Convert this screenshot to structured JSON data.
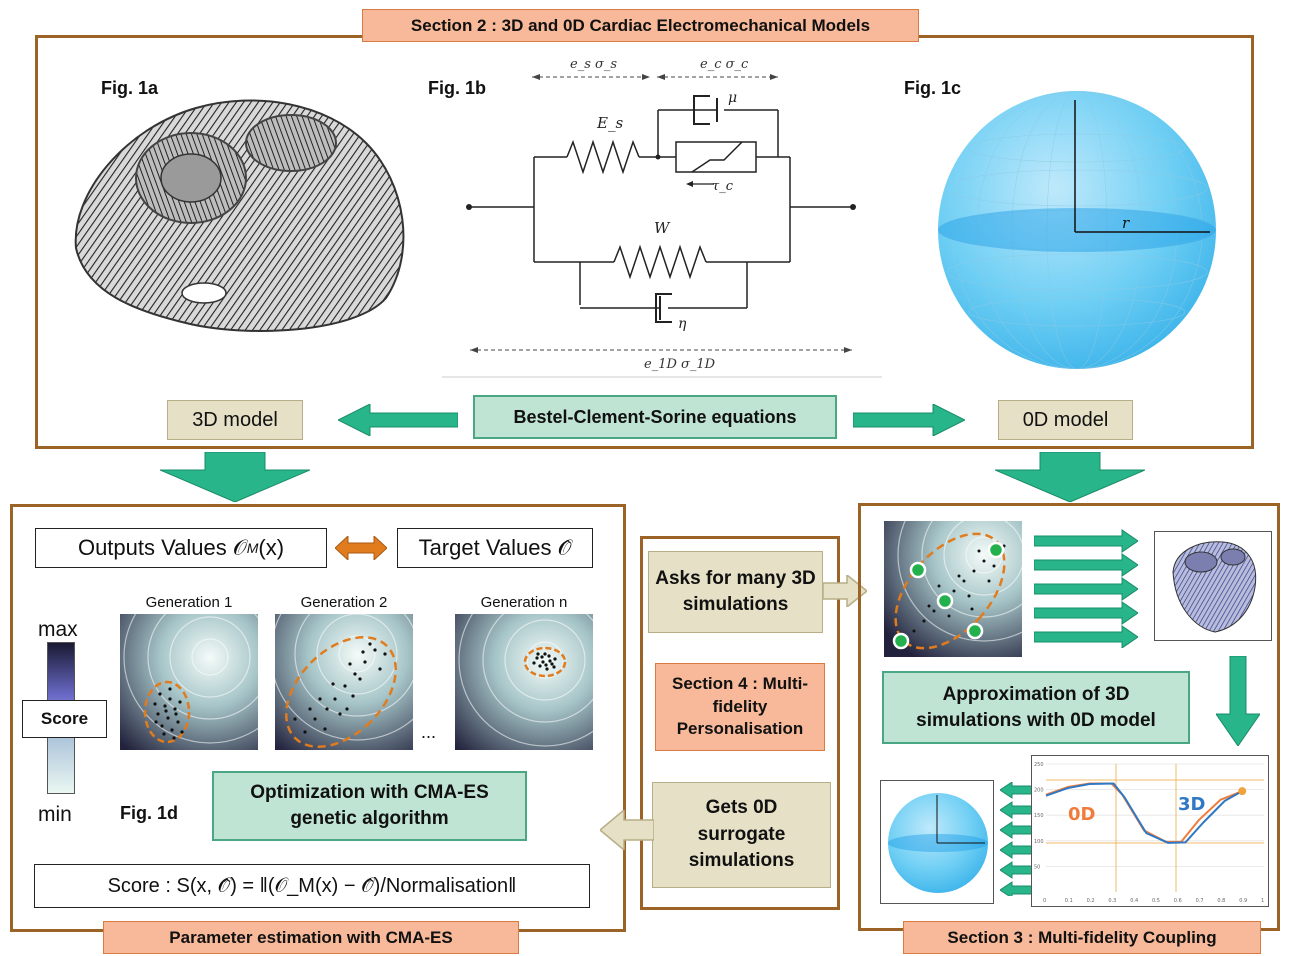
{
  "section2": {
    "label": "Section 2 : 3D and 0D Cardiac Electromechanical Models"
  },
  "fig1a": {
    "label": "Fig. 1a"
  },
  "fig1b": {
    "label": "Fig. 1b",
    "es_sigma_s": "e_s   σ_s",
    "ec_sigma_c": "e_c   σ_c",
    "Es": "E_s",
    "mu": "μ",
    "tau_c": "τ_c",
    "W": "W",
    "eta": "η",
    "e1D": "e_1D    σ_1D"
  },
  "fig1c": {
    "label": "Fig. 1c",
    "r": "r"
  },
  "top_row": {
    "model3d": "3D model",
    "equations": "Bestel-Clement-Sorine equations",
    "model0d": "0D model"
  },
  "left_panel": {
    "outputs": "Outputs Values 𝒪",
    "outputs_sub": "M",
    "outputs_arg": "(x)",
    "target": "Target Values 𝒪̂",
    "gen1": "Generation 1",
    "gen2": "Generation 2",
    "genn": "Generation n",
    "ellipsis": "...",
    "max": "max",
    "score": "Score",
    "min": "min",
    "fig1d": "Fig. 1d",
    "cma": "Optimization with CMA-ES genetic algorithm",
    "score_formula": "Score : S(x, 𝒪̂) = ‖(𝒪_M(x) − 𝒪̂)/Normalisation‖",
    "footer": "Parameter estimation with CMA-ES"
  },
  "middle_panel": {
    "asks": "Asks for many 3D simulations",
    "section4": "Section 4 : Multi-fidelity Personalisation",
    "gets": "Gets 0D surrogate simulations"
  },
  "right_panel": {
    "approx": "Approximation of  3D simulations with 0D model",
    "label0d": "0D",
    "label3d": "3D",
    "yticks": [
      "250",
      "200",
      "150",
      "100",
      "50"
    ],
    "xticks": [
      "0",
      "0.1",
      "0.2",
      "0.3",
      "0.4",
      "0.5",
      "0.6",
      "0.7",
      "0.8",
      "0.9",
      "1"
    ],
    "footer": "Section 3 : Multi-fidelity Coupling"
  },
  "colors": {
    "frame": "#9b6326",
    "green_arrow": "#27b589",
    "orange_label": "#f7b999",
    "tan": "#e6e0c6",
    "line0d": "#f07c3c",
    "line3d": "#2f78c4"
  },
  "chart_data": {
    "type": "line",
    "title": "",
    "xlabel": "",
    "ylabel": "",
    "xlim": [
      0,
      1
    ],
    "ylim": [
      0,
      250
    ],
    "series": [
      {
        "name": "0D",
        "x": [
          0,
          0.1,
          0.2,
          0.3,
          0.35,
          0.45,
          0.55,
          0.62,
          0.7,
          0.8,
          0.9
        ],
        "y": [
          190,
          205,
          212,
          212,
          190,
          120,
          98,
          98,
          140,
          180,
          197
        ]
      },
      {
        "name": "3D",
        "x": [
          0,
          0.1,
          0.2,
          0.31,
          0.36,
          0.46,
          0.56,
          0.64,
          0.72,
          0.82,
          0.9
        ],
        "y": [
          188,
          203,
          211,
          212,
          185,
          115,
          96,
          97,
          135,
          178,
          197
        ]
      }
    ]
  }
}
